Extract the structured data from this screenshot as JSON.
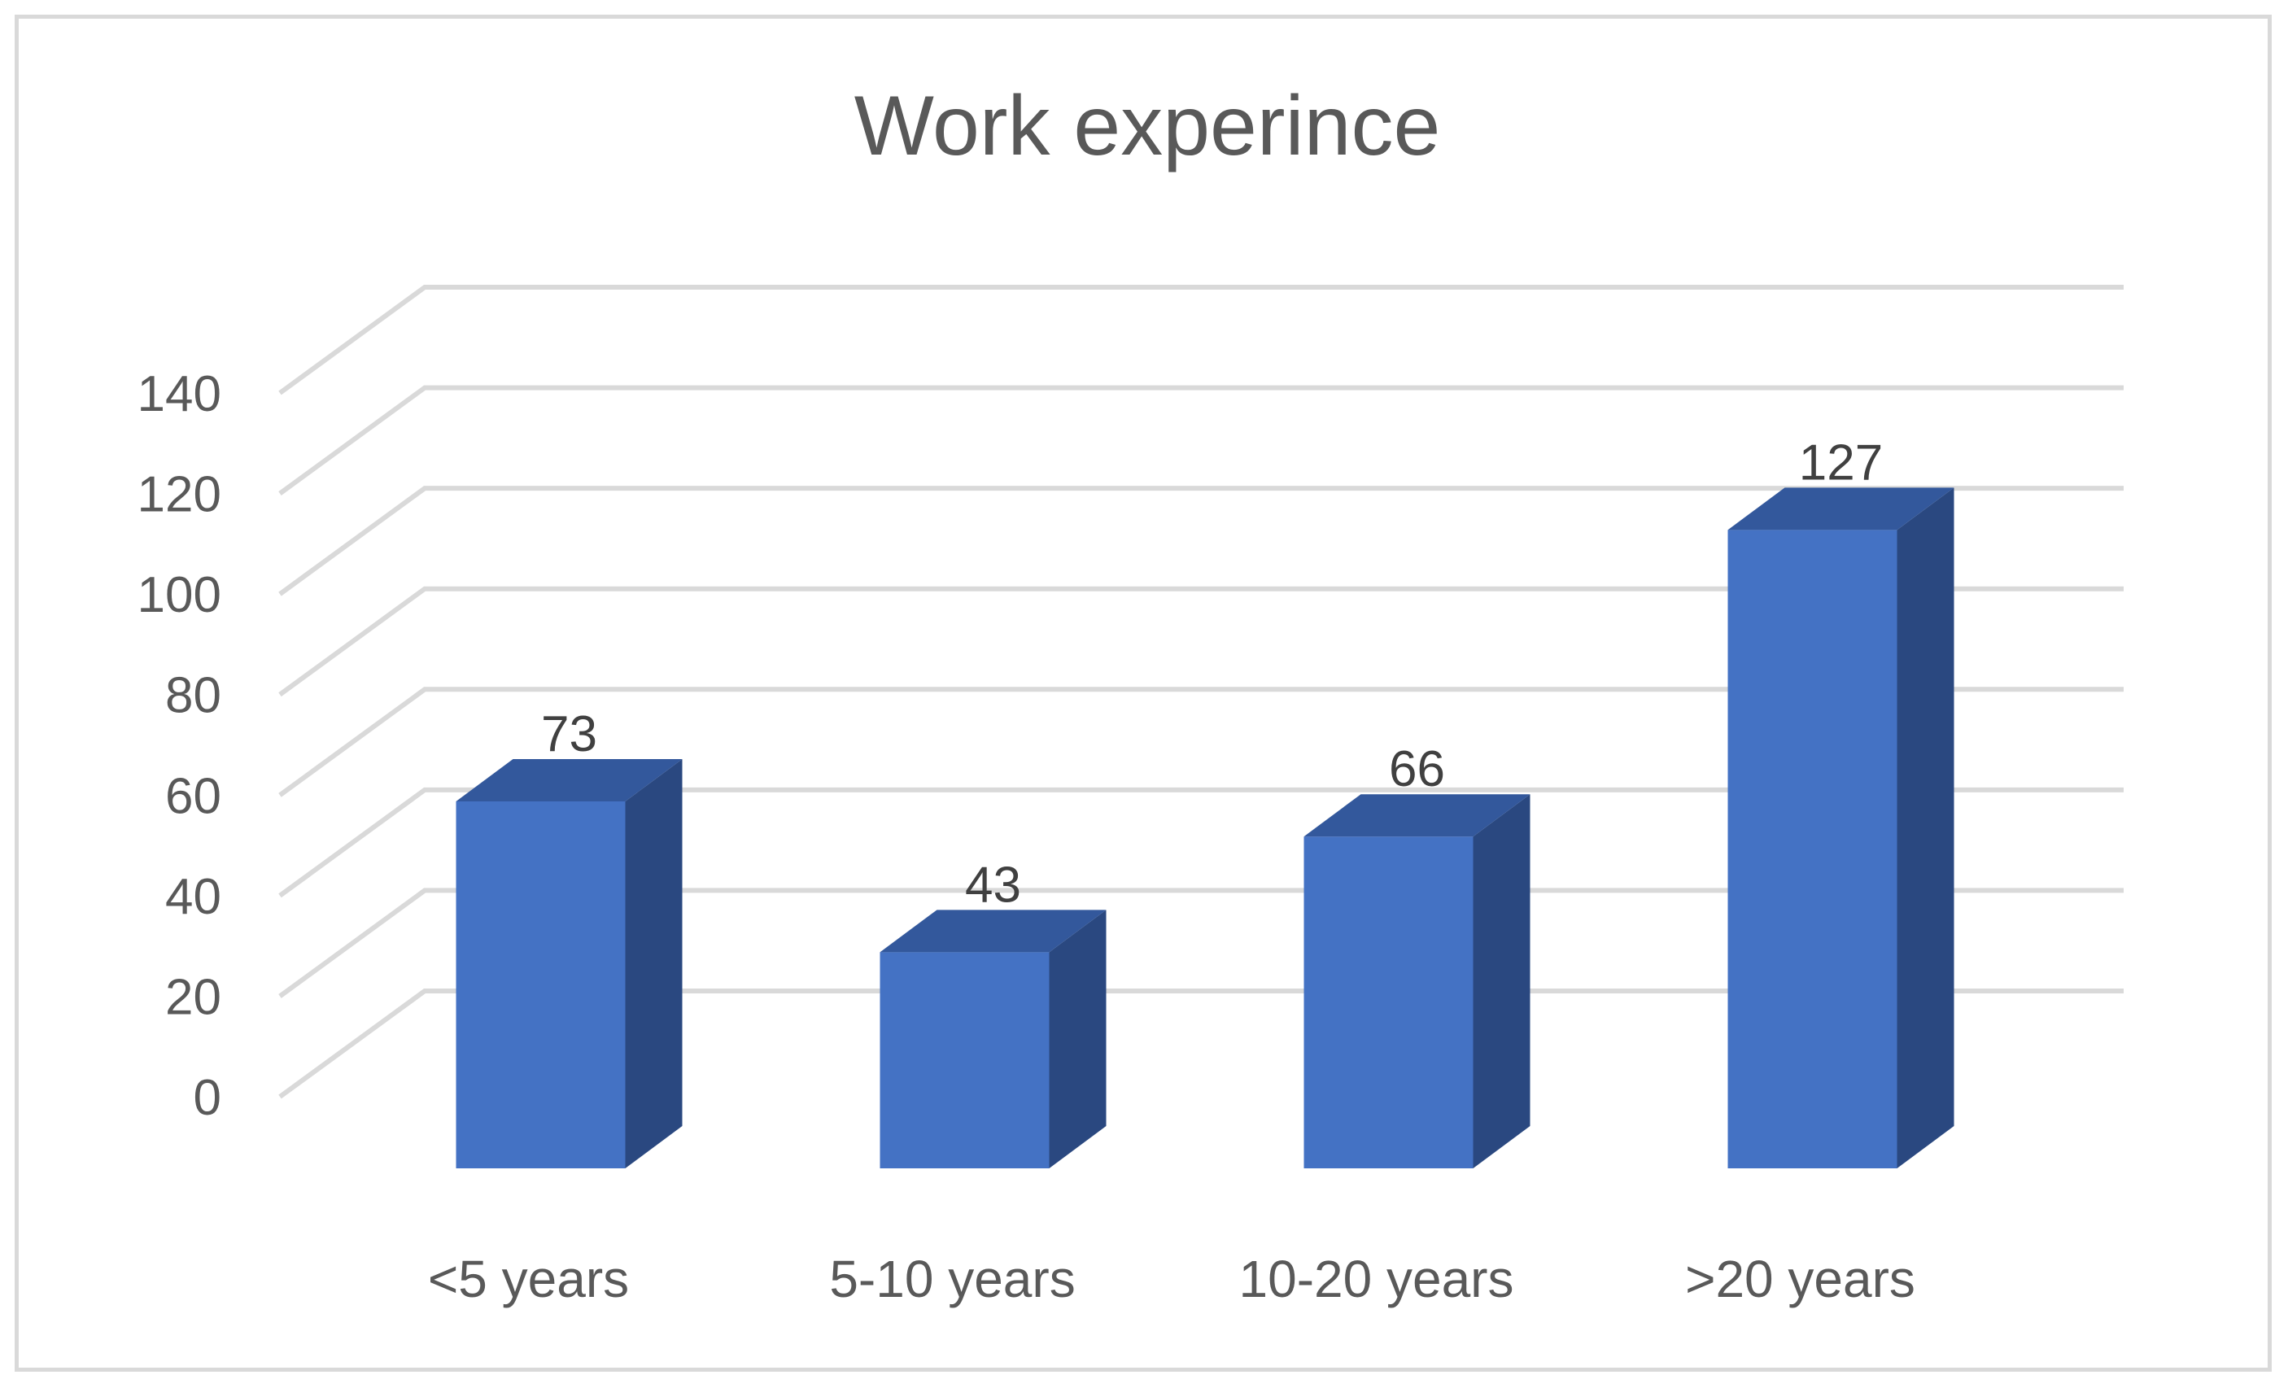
{
  "colors": {
    "bar_front": "#4472c4",
    "bar_side": "#2a4880",
    "bar_top": "#33589c",
    "grid": "#d9d9d9",
    "text": "#595959",
    "label": "#404040"
  },
  "chart_data": {
    "type": "bar",
    "style": "3d-column",
    "title": "Work experince",
    "xlabel": "",
    "ylabel": "",
    "categories": [
      "<5 years",
      "5-10 years",
      "10-20 years",
      ">20 years"
    ],
    "values": [
      73,
      43,
      66,
      127
    ],
    "data_labels": [
      "73",
      "43",
      "66",
      "127"
    ],
    "ylim": [
      0,
      140
    ],
    "yticks": [
      0,
      20,
      40,
      60,
      80,
      100,
      120,
      140
    ],
    "ytick_labels": [
      "0",
      "20",
      "40",
      "60",
      "80",
      "100",
      "120",
      "140"
    ],
    "grid": true,
    "legend": "none"
  }
}
